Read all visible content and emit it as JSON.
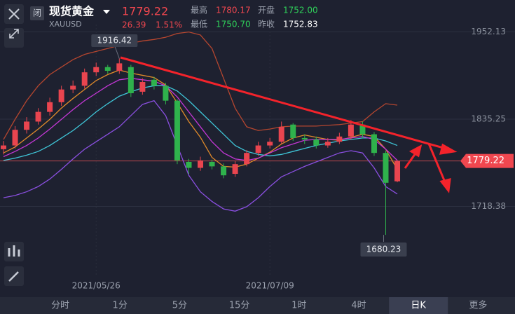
{
  "header": {
    "icon": "闭",
    "name": "现货黄金",
    "symbol": "XAUUSD",
    "price": "1779.22",
    "change": "26.39",
    "change_pct": "1.51%",
    "stats": [
      {
        "label": "最高",
        "value": "1780.17"
      },
      {
        "label": "开盘",
        "value": "1752.00"
      },
      {
        "label": "最低",
        "value": "1750.70"
      },
      {
        "label": "昨收",
        "value": "1752.83"
      }
    ]
  },
  "chart_data": {
    "type": "candlestick",
    "categories": [
      null,
      null,
      null,
      null,
      null,
      null,
      null,
      null,
      "2021/05/26",
      null,
      null,
      null,
      null,
      null,
      null,
      null,
      null,
      null,
      null,
      null,
      null,
      null,
      null,
      "2021/07/09",
      null,
      null,
      null,
      null,
      null,
      null,
      null,
      null,
      null,
      null,
      null
    ],
    "open": [
      1795,
      1800,
      1821,
      1832,
      1845,
      1858,
      1875,
      1880,
      1898,
      1905,
      1900,
      1905,
      1872,
      1888,
      1880,
      1860,
      1778,
      1770,
      1778,
      1772,
      1762,
      1775,
      1790,
      1800,
      1805,
      1828,
      1810,
      1808,
      1800,
      1805,
      1812,
      1828,
      1815,
      1790,
      1752
    ],
    "high": [
      1806,
      1826,
      1838,
      1850,
      1864,
      1880,
      1887,
      1903,
      1911,
      1908,
      1916.42,
      1908,
      1890,
      1892,
      1884,
      1862,
      1782,
      1785,
      1781,
      1776,
      1779,
      1794,
      1805,
      1810,
      1832,
      1830,
      1815,
      1812,
      1810,
      1817,
      1834,
      1832,
      1818,
      1793,
      1780.17
    ],
    "low": [
      1788,
      1796,
      1816,
      1828,
      1840,
      1853,
      1870,
      1876,
      1893,
      1896,
      1896,
      1865,
      1868,
      1875,
      1855,
      1775,
      1762,
      1766,
      1768,
      1756,
      1758,
      1772,
      1786,
      1796,
      1802,
      1806,
      1802,
      1796,
      1797,
      1802,
      1808,
      1810,
      1786,
      1680.23,
      1750.7
    ],
    "close": [
      1800,
      1821,
      1832,
      1845,
      1858,
      1875,
      1880,
      1898,
      1905,
      1900,
      1910,
      1870,
      1885,
      1880,
      1860,
      1780,
      1770,
      1780,
      1772,
      1760,
      1775,
      1790,
      1800,
      1805,
      1825,
      1810,
      1808,
      1800,
      1805,
      1812,
      1828,
      1815,
      1790,
      1750,
      1779.22
    ],
    "up_color": "#e9454f",
    "down_color": "#2fb24c",
    "lines": [
      {
        "color": "#b5462f",
        "values": [
          1808,
          1835,
          1860,
          1880,
          1895,
          1905,
          1915,
          1922,
          1926,
          1930,
          1934,
          1937,
          1940,
          1942,
          1945,
          1950,
          1952,
          1948,
          1930,
          1890,
          1850,
          1825,
          1820,
          1822,
          1825,
          1826,
          1826,
          1826,
          1827,
          1828,
          1830,
          1832,
          1845,
          1856,
          1854
        ]
      },
      {
        "color": "#e08a2a",
        "values": [
          1790,
          1798,
          1810,
          1822,
          1835,
          1850,
          1863,
          1875,
          1887,
          1895,
          1901,
          1897,
          1894,
          1891,
          1881,
          1857,
          1832,
          1811,
          1784,
          1772,
          1771,
          1775,
          1783,
          1791,
          1802,
          1810,
          1814,
          1811,
          1808,
          1807,
          1811,
          1815,
          1812,
          1795,
          1768
        ]
      },
      {
        "color": "#3fc6d8",
        "values": [
          1780,
          1783,
          1787,
          1792,
          1800,
          1810,
          1820,
          1832,
          1845,
          1856,
          1866,
          1872,
          1877,
          1880,
          1880,
          1873,
          1860,
          1845,
          1830,
          1815,
          1800,
          1792,
          1788,
          1786,
          1788,
          1792,
          1796,
          1800,
          1803,
          1806,
          1808,
          1810,
          1810,
          1806,
          1800
        ]
      },
      {
        "color": "#c437d6",
        "values": [
          1785,
          1792,
          1800,
          1810,
          1822,
          1835,
          1848,
          1860,
          1870,
          1880,
          1888,
          1890,
          1888,
          1886,
          1880,
          1865,
          1845,
          1825,
          1805,
          1790,
          1782,
          1780,
          1783,
          1790,
          1797,
          1802,
          1807,
          1808,
          1808,
          1808,
          1810,
          1812,
          1808,
          1795,
          1780
        ]
      },
      {
        "color": "#8a4fe0",
        "values": [
          1730,
          1733,
          1738,
          1745,
          1755,
          1768,
          1782,
          1795,
          1805,
          1815,
          1825,
          1840,
          1855,
          1860,
          1840,
          1800,
          1760,
          1738,
          1725,
          1715,
          1712,
          1718,
          1730,
          1745,
          1758,
          1765,
          1772,
          1778,
          1784,
          1790,
          1793,
          1790,
          1770,
          1745,
          1735
        ]
      }
    ],
    "current_price": 1779.22,
    "high_label": 1916.42,
    "low_label": 1680.23,
    "ylim": [
      1624,
      1962
    ],
    "yticks": [
      1718.38,
      1835.25,
      1952.13
    ],
    "grid": true
  },
  "tabs": {
    "items": [
      "分时",
      "1分",
      "5分",
      "15分",
      "1时",
      "4时",
      "日K",
      "更多"
    ],
    "active": 6
  }
}
